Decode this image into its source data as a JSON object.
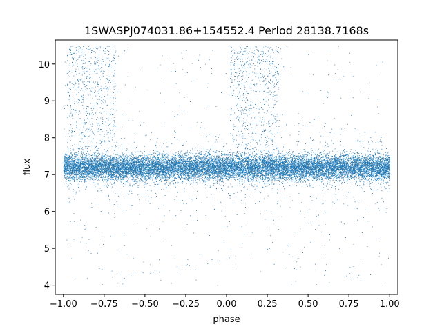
{
  "chart_data": {
    "type": "scatter",
    "title": "1SWASPJ074031.86+154552.4 Period 28138.7168s",
    "xlabel": "phase",
    "ylabel": "flux",
    "xlim": [
      -1.05,
      1.05
    ],
    "ylim": [
      3.75,
      10.65
    ],
    "x_ticks": [
      -1.0,
      -0.75,
      -0.5,
      -0.25,
      0.0,
      0.25,
      0.5,
      0.75,
      1.0
    ],
    "x_tick_labels": [
      "−1.00",
      "−0.75",
      "−0.50",
      "−0.25",
      "0.00",
      "0.25",
      "0.50",
      "0.75",
      "1.00"
    ],
    "y_ticks": [
      4,
      5,
      6,
      7,
      8,
      9,
      10
    ],
    "y_tick_labels": [
      "4",
      "5",
      "6",
      "7",
      "8",
      "9",
      "10"
    ],
    "grid": false,
    "marker_color": "#1f77b4",
    "series": [
      {
        "description_of_distribution": "dense band of points across all phases",
        "phase_range": [
          -1.0,
          1.0
        ],
        "flux_center": 7.2,
        "flux_spread_sd": 0.17
      },
      {
        "description_of_distribution": "brightening clusters reaching up to ~10.5 flux",
        "phase_ranges": [
          [
            -0.98,
            -0.68
          ],
          [
            0.02,
            0.32
          ]
        ],
        "flux_range": [
          7.5,
          10.5
        ]
      },
      {
        "description_of_distribution": "sparse outliers above and below the band",
        "phase_range": [
          -1.0,
          1.0
        ],
        "flux_range": [
          4.0,
          10.5
        ]
      }
    ]
  }
}
